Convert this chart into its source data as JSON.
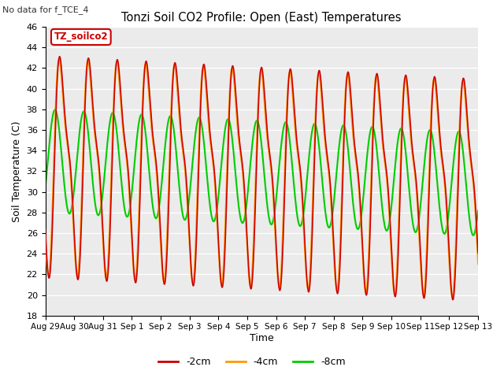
{
  "title": "Tonzi Soil CO2 Profile: Open (East) Temperatures",
  "subtitle": "No data for f_TCE_4",
  "ylabel": "Soil Temperature (C)",
  "xlabel": "Time",
  "legend_label": "TZ_soilco2",
  "ylim": [
    18,
    46
  ],
  "yticks": [
    18,
    20,
    22,
    24,
    26,
    28,
    30,
    32,
    34,
    36,
    38,
    40,
    42,
    44,
    46
  ],
  "colors": {
    "2cm": "#cc0000",
    "4cm": "#ff9900",
    "8cm": "#00cc00"
  },
  "line_labels": [
    "-2cm",
    "-4cm",
    "-8cm"
  ],
  "tick_labels": [
    "Aug 29",
    "Aug 30",
    "Aug 31",
    "Sep 1",
    "Sep 2",
    "Sep 3",
    "Sep 4",
    "Sep 5",
    "Sep 6",
    "Sep 7",
    "Sep 8",
    "Sep 9",
    "Sep 10",
    "Sep 11",
    "Sep 12",
    "Sep 13"
  ],
  "n_days": 15,
  "background_color": "#ffffff",
  "plot_bg": "#ebebeb",
  "grid_color": "#ffffff"
}
